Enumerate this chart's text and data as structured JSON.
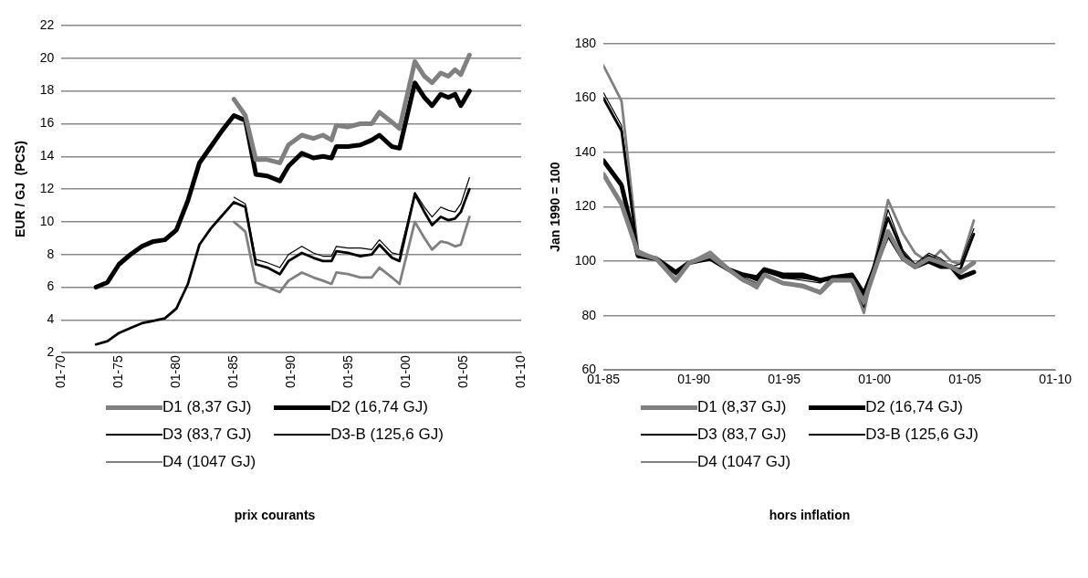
{
  "chart_data": [
    {
      "type": "line",
      "title": "prix courants",
      "ylabel": "EUR / GJ  (PCS)",
      "xlim": [
        "1970-01",
        "2010-01"
      ],
      "xticks": [
        {
          "value": "1970-01",
          "label": "01-70"
        },
        {
          "value": "1975-01",
          "label": "01-75"
        },
        {
          "value": "1980-01",
          "label": "01-80"
        },
        {
          "value": "1985-01",
          "label": "01-85"
        },
        {
          "value": "1990-01",
          "label": "01-90"
        },
        {
          "value": "1995-01",
          "label": "01-95"
        },
        {
          "value": "2000-01",
          "label": "01-00"
        },
        {
          "value": "2005-01",
          "label": "01-05"
        },
        {
          "value": "2010-01",
          "label": "01-10"
        }
      ],
      "ylim": [
        2,
        22
      ],
      "yticks": [
        2,
        4,
        6,
        8,
        10,
        12,
        14,
        16,
        18,
        20,
        22
      ],
      "grid": "y",
      "legend": "bottom",
      "marker": "none",
      "line_style": "solid",
      "x": [
        "1985-01",
        "1986-01",
        "1986-12",
        "1987-12",
        "1989-01",
        "1989-10",
        "1990-12",
        "1991-12",
        "1992-10",
        "1993-07",
        "1993-12",
        "1994-12",
        "1996-01",
        "1997-01",
        "1997-09",
        "1998-10",
        "1999-06",
        "2000-10",
        "2001-08",
        "2002-04",
        "2003-01",
        "2003-09",
        "2004-04",
        "2004-10",
        "2005-07"
      ],
      "series": [
        {
          "name": "D1 (8,37 GJ)",
          "color": "#808080",
          "values": [
            17.5,
            16.5,
            13.8,
            13.8,
            13.6,
            14.7,
            15.3,
            15.1,
            15.3,
            15.0,
            15.9,
            15.8,
            16.0,
            16.0,
            16.7,
            16.1,
            15.7,
            19.8,
            18.9,
            18.5,
            19.1,
            18.9,
            19.3,
            19.0,
            20.2
          ]
        },
        {
          "name": "D2 (16,74 GJ)",
          "color": "#000000",
          "x": [
            "1973-01",
            "1974-01",
            "1975-01",
            "1976-01",
            "1977-01",
            "1978-01",
            "1979-01",
            "1980-01",
            "1981-01",
            "1982-01",
            "1983-01",
            "1984-01",
            "1985-01",
            "1986-01",
            "1986-12",
            "1987-12",
            "1989-01",
            "1989-10",
            "1990-12",
            "1991-12",
            "1992-10",
            "1993-07",
            "1993-12",
            "1994-12",
            "1996-01",
            "1997-01",
            "1997-09",
            "1998-10",
            "1999-06",
            "2000-10",
            "2001-08",
            "2002-04",
            "2003-01",
            "2003-09",
            "2004-04",
            "2004-10",
            "2005-07"
          ],
          "values": [
            6.0,
            6.3,
            7.4,
            8.0,
            8.5,
            8.8,
            8.9,
            9.5,
            11.3,
            13.6,
            14.6,
            15.6,
            16.5,
            16.2,
            12.9,
            12.8,
            12.5,
            13.4,
            14.2,
            13.9,
            14.0,
            13.9,
            14.6,
            14.6,
            14.7,
            15.0,
            15.3,
            14.6,
            14.5,
            18.5,
            17.6,
            17.1,
            17.8,
            17.6,
            17.8,
            17.1,
            18.0
          ]
        },
        {
          "name": "D3 (83,7 GJ)",
          "color": "#000000",
          "values": [
            11.5,
            11.1,
            7.7,
            7.5,
            7.2,
            8.0,
            8.5,
            8.1,
            7.9,
            7.9,
            8.5,
            8.4,
            8.4,
            8.3,
            8.9,
            8.1,
            8.0,
            11.8,
            10.9,
            10.3,
            10.9,
            10.7,
            10.6,
            11.1,
            12.7
          ]
        },
        {
          "name": "D3-B (125,6 GJ)",
          "color": "#000000",
          "x": [
            "1973-01",
            "1974-01",
            "1975-01",
            "1976-01",
            "1977-01",
            "1978-01",
            "1979-01",
            "1980-01",
            "1981-01",
            "1982-01",
            "1983-01",
            "1984-01",
            "1985-01",
            "1986-01",
            "1986-12",
            "1987-12",
            "1989-01",
            "1989-10",
            "1990-12",
            "1991-12",
            "1992-10",
            "1993-07",
            "1993-12",
            "1994-12",
            "1996-01",
            "1997-01",
            "1997-09",
            "1998-10",
            "1999-06",
            "2000-10",
            "2001-08",
            "2002-04",
            "2003-01",
            "2003-09",
            "2004-04",
            "2004-10",
            "2005-07"
          ],
          "values": [
            2.5,
            2.7,
            3.2,
            3.5,
            3.8,
            3.95,
            4.1,
            4.7,
            6.2,
            8.6,
            9.6,
            10.4,
            11.2,
            10.9,
            7.4,
            7.2,
            6.8,
            7.6,
            8.1,
            7.8,
            7.6,
            7.6,
            8.2,
            8.1,
            7.9,
            8.0,
            8.6,
            7.8,
            7.6,
            11.7,
            10.6,
            9.8,
            10.3,
            10.1,
            10.2,
            10.6,
            12.0
          ]
        },
        {
          "name": "D4 (1047 GJ)",
          "color": "#808080",
          "values": [
            10.0,
            9.4,
            6.3,
            6.0,
            5.7,
            6.4,
            6.9,
            6.6,
            6.4,
            6.2,
            6.9,
            6.8,
            6.6,
            6.6,
            7.2,
            6.6,
            6.2,
            10.0,
            9.0,
            8.3,
            8.8,
            8.7,
            8.5,
            8.6,
            10.3
          ]
        }
      ]
    },
    {
      "type": "line",
      "title": "hors inflation",
      "ylabel": "Jan 1990 = 100",
      "xlim": [
        "1985-01",
        "2010-01"
      ],
      "xticks": [
        {
          "value": "1985-01",
          "label": "01-85"
        },
        {
          "value": "1990-01",
          "label": "01-90"
        },
        {
          "value": "1995-01",
          "label": "01-95"
        },
        {
          "value": "2000-01",
          "label": "01-00"
        },
        {
          "value": "2005-01",
          "label": "01-05"
        },
        {
          "value": "2010-01",
          "label": "01-10"
        }
      ],
      "ylim": [
        60,
        180
      ],
      "yticks": [
        60,
        80,
        100,
        120,
        140,
        160,
        180
      ],
      "grid": "y",
      "legend": "bottom",
      "marker": "none",
      "line_style": "solid",
      "x": [
        "1985-01",
        "1986-01",
        "1986-12",
        "1987-12",
        "1989-01",
        "1989-10",
        "1990-12",
        "1991-12",
        "1992-10",
        "1993-07",
        "1993-12",
        "1994-12",
        "1996-01",
        "1997-01",
        "1997-09",
        "1998-10",
        "1999-06",
        "2000-10",
        "2001-08",
        "2002-04",
        "2003-01",
        "2003-09",
        "2004-04",
        "2004-10",
        "2005-07"
      ],
      "series": [
        {
          "name": "D1 (8,37 GJ)",
          "color": "#808080",
          "values": [
            132,
            121,
            103,
            101,
            93,
            99.5,
            102,
            97,
            93,
            91,
            95,
            92,
            91,
            88.5,
            93,
            93,
            85,
            111,
            101,
            98,
            101,
            99.5,
            98,
            96,
            99.5
          ]
        },
        {
          "name": "D2 (16,74 GJ)",
          "color": "#000000",
          "values": [
            137,
            128,
            102,
            101,
            96,
            99.5,
            101,
            97,
            95,
            94,
            97,
            95,
            95,
            93,
            94,
            95,
            88,
            110,
            101,
            98,
            100,
            98,
            98,
            94,
            96
          ]
        },
        {
          "name": "D3 (83,7 GJ)",
          "color": "#000000",
          "values": [
            162,
            150,
            103,
            101,
            95,
            99.5,
            102,
            97,
            94,
            92,
            96,
            94,
            93,
            92,
            94,
            93,
            83,
            119,
            104,
            99,
            103,
            101,
            98,
            99,
            112
          ]
        },
        {
          "name": "D3-B (125,6 GJ)",
          "color": "#000000",
          "values": [
            160,
            148,
            102,
            101,
            96,
            99.5,
            101,
            97,
            95,
            93,
            97,
            94,
            94,
            93,
            94,
            94,
            86,
            116,
            103,
            98,
            102,
            100,
            98,
            97,
            110
          ]
        },
        {
          "name": "D4 (1047 GJ)",
          "color": "#808080",
          "values": [
            172,
            159,
            104,
            101,
            92.5,
            99.5,
            103.5,
            97.5,
            93,
            90,
            95,
            92,
            90.5,
            89,
            94.5,
            93,
            81,
            122.5,
            110,
            103,
            99.5,
            104,
            100,
            99,
            115
          ]
        }
      ]
    }
  ]
}
